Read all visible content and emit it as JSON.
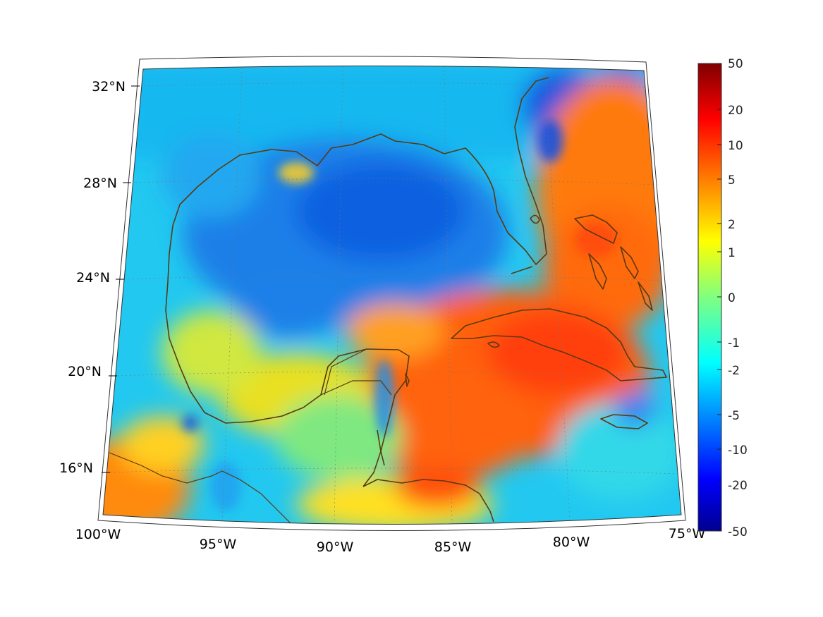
{
  "map": {
    "projection": "lambert-conic",
    "region": "Gulf of Mexico and Caribbean",
    "lat_ticks": [
      {
        "value": 32,
        "label": "32°N"
      },
      {
        "value": 28,
        "label": "28°N"
      },
      {
        "value": 24,
        "label": "24°N"
      },
      {
        "value": 20,
        "label": "20°N"
      },
      {
        "value": 16,
        "label": "16°N"
      }
    ],
    "lon_ticks": [
      {
        "value": -100,
        "label": "100°W"
      },
      {
        "value": -95,
        "label": "95°W"
      },
      {
        "value": -90,
        "label": "90°W"
      },
      {
        "value": -85,
        "label": "85°W"
      },
      {
        "value": -80,
        "label": "80°W"
      },
      {
        "value": -75,
        "label": "75°W"
      }
    ],
    "coastline_color": "#5a3a12"
  },
  "colorbar": {
    "colormap": "jet",
    "scale": "symmetric-log",
    "min_color": "#00008f",
    "max_color": "#800000",
    "ticks": [
      "50",
      "20",
      "10",
      "5",
      "2",
      "1",
      "0",
      "-1",
      "-2",
      "-5",
      "-10",
      "-20",
      "-50"
    ]
  }
}
